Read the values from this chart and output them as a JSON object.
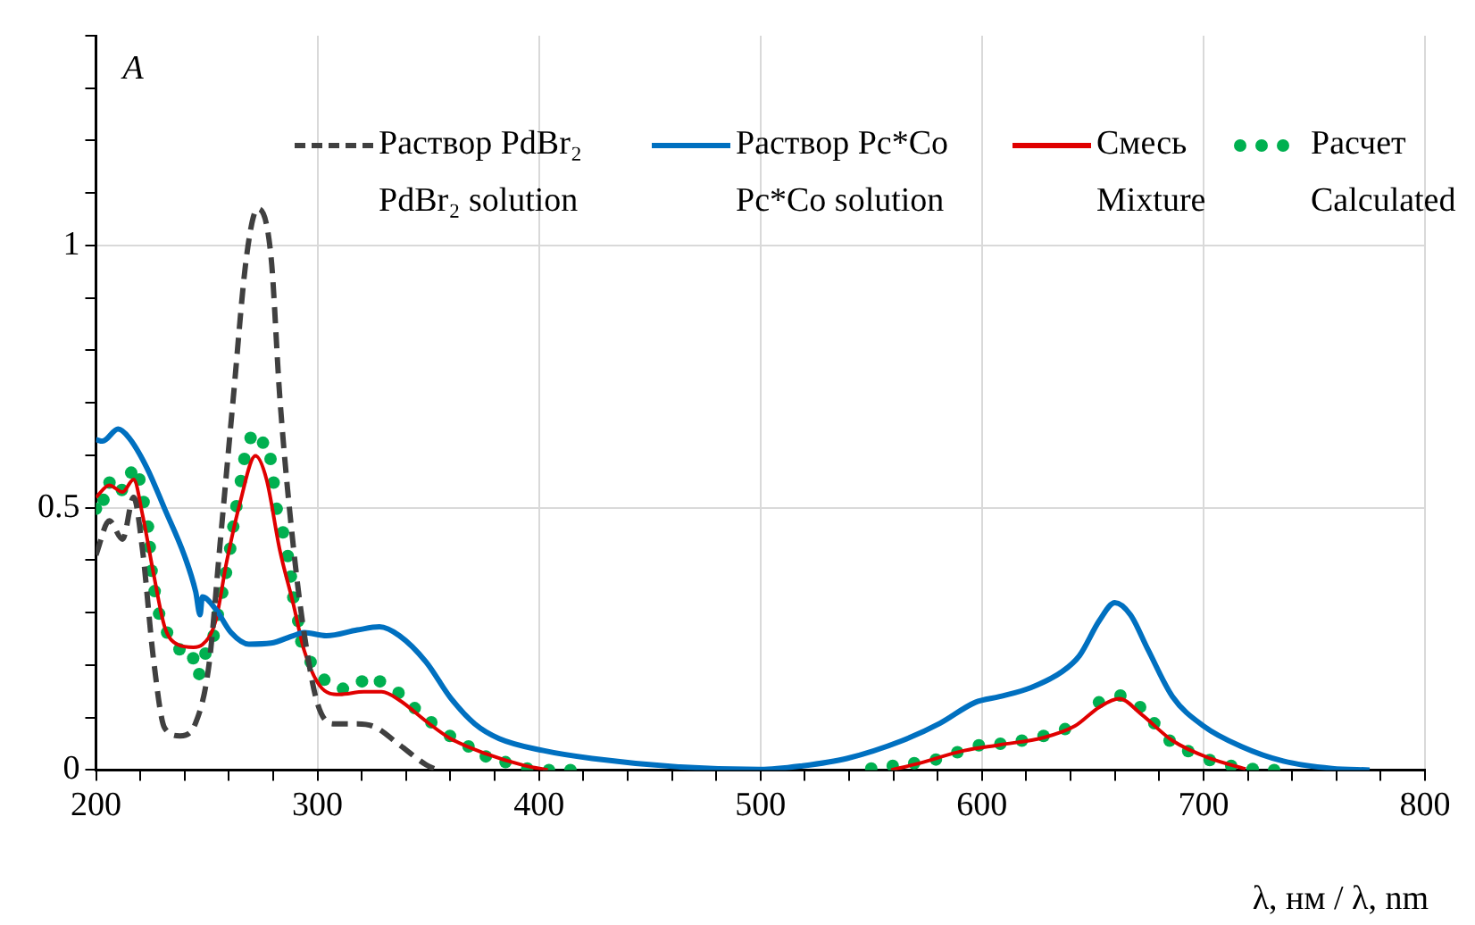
{
  "chart_data": {
    "type": "line",
    "ylabel": "A",
    "xlabel": "λ, нм / λ, nm",
    "xlim": [
      200,
      800
    ],
    "xticks": [
      200,
      {
        "value": 220,
        "label": null
      },
      {
        "value": 240,
        "label": null
      },
      {
        "value": 260,
        "label": null
      },
      {
        "value": 280,
        "label": null
      },
      300,
      {
        "value": 320,
        "label": null
      },
      {
        "value": 340,
        "label": null
      },
      {
        "value": 360,
        "label": null
      },
      {
        "value": 380,
        "label": null
      },
      400,
      {
        "value": 420,
        "label": null
      },
      {
        "value": 440,
        "label": null
      },
      {
        "value": 460,
        "label": null
      },
      {
        "value": 480,
        "label": null
      },
      500,
      {
        "value": 520,
        "label": null
      },
      {
        "value": 540,
        "label": null
      },
      {
        "value": 560,
        "label": null
      },
      {
        "value": 580,
        "label": null
      },
      600,
      {
        "value": 620,
        "label": null
      },
      {
        "value": 640,
        "label": null
      },
      {
        "value": 660,
        "label": null
      },
      {
        "value": 680,
        "label": null
      },
      700,
      {
        "value": 720,
        "label": null
      },
      {
        "value": 740,
        "label": null
      },
      {
        "value": 760,
        "label": null
      },
      {
        "value": 780,
        "label": null
      },
      800
    ],
    "ylim": [
      0,
      1.4
    ],
    "yticks": [
      0,
      {
        "value": 0.1,
        "label": null
      },
      {
        "value": 0.2,
        "label": null
      },
      {
        "value": 0.3,
        "label": null
      },
      {
        "value": 0.4,
        "label": null
      },
      0.5,
      {
        "value": 0.6,
        "label": null
      },
      {
        "value": 0.7,
        "label": null
      },
      {
        "value": 0.8,
        "label": null
      },
      {
        "value": 0.9,
        "label": null
      },
      1,
      {
        "value": 1.1,
        "label": null
      },
      {
        "value": 1.2,
        "label": null
      },
      {
        "value": 1.3,
        "label": null
      },
      {
        "value": 1.4,
        "label": null
      }
    ],
    "grid": true,
    "legend": "top",
    "annotations": [
      "PdBr₂ solution",
      "Pc*Co solution",
      "Mixture",
      "Calculated"
    ],
    "series": [
      {
        "name": "Раствор PdBr₂",
        "color": "#404040",
        "line_style": "dashed",
        "x": [
          200,
          206,
          212,
          217,
          221,
          226,
          231,
          238,
          245,
          251,
          256,
          262,
          268,
          273,
          279,
          283,
          289,
          294,
          300,
          307,
          318,
          326,
          337,
          349,
          354
        ],
        "values": [
          0.41,
          0.475,
          0.44,
          0.52,
          0.42,
          0.21,
          0.08,
          0.065,
          0.09,
          0.2,
          0.43,
          0.71,
          0.98,
          1.07,
          0.98,
          0.71,
          0.43,
          0.26,
          0.127,
          0.088,
          0.088,
          0.082,
          0.048,
          0.01,
          0
        ]
      },
      {
        "name": "Раствор Pc*Co",
        "color": "#0070c0",
        "line_style": "solid",
        "x": [
          200,
          203,
          210,
          215,
          223,
          231,
          240,
          245,
          247,
          248,
          254,
          261,
          269,
          279,
          289,
          294,
          304,
          318,
          328,
          337,
          349,
          360,
          371,
          382,
          402,
          424,
          463,
          500,
          519,
          539,
          564,
          581,
          597,
          608,
          622,
          636,
          644,
          653,
          660,
          667,
          675,
          686,
          700,
          717,
          736,
          758,
          775
        ],
        "values": [
          0.63,
          0.627,
          0.65,
          0.633,
          0.576,
          0.498,
          0.408,
          0.34,
          0.296,
          0.33,
          0.307,
          0.262,
          0.24,
          0.242,
          0.256,
          0.262,
          0.256,
          0.267,
          0.273,
          0.256,
          0.206,
          0.138,
          0.088,
          0.06,
          0.037,
          0.022,
          0.006,
          0.001,
          0.008,
          0.022,
          0.056,
          0.089,
          0.129,
          0.14,
          0.157,
          0.187,
          0.218,
          0.285,
          0.319,
          0.296,
          0.229,
          0.14,
          0.084,
          0.045,
          0.017,
          0.003,
          0
        ]
      },
      {
        "name": "Смесь",
        "color": "#e00000",
        "line_style": "solid",
        "x": [
          200,
          206,
          212,
          217,
          221,
          226,
          231,
          237,
          244,
          248,
          254,
          259,
          265,
          272,
          277,
          283,
          289,
          294,
          301,
          310,
          321,
          329,
          337,
          349,
          360,
          376,
          393,
          404,
          480,
          559,
          570,
          592,
          608,
          628,
          642,
          653,
          662,
          672,
          686,
          703,
          719
        ],
        "values": [
          0.52,
          0.543,
          0.53,
          0.554,
          0.487,
          0.374,
          0.273,
          0.239,
          0.234,
          0.239,
          0.284,
          0.397,
          0.509,
          0.599,
          0.554,
          0.419,
          0.318,
          0.228,
          0.161,
          0.144,
          0.149,
          0.149,
          0.133,
          0.093,
          0.06,
          0.031,
          0.009,
          0,
          null,
          0,
          0.011,
          0.037,
          0.048,
          0.062,
          0.084,
          0.12,
          0.136,
          0.106,
          0.056,
          0.022,
          0.002
        ]
      },
      {
        "name": "Расчет",
        "color": "#00b050",
        "type": "scatter",
        "marker": "circle",
        "x": [
          200,
          203.4,
          206.1,
          211.7,
          215.9,
          219.6,
          221.5,
          223.5,
          224.3,
          225.1,
          226.5,
          228.5,
          232.1,
          237.7,
          243.9,
          246.6,
          249.4,
          253.1,
          255,
          257,
          258.7,
          260.6,
          262,
          263.4,
          265.4,
          267,
          269.8,
          275.4,
          278.8,
          280.2,
          281.6,
          284.4,
          286.6,
          288,
          289.1,
          291.3,
          292.7,
          296.9,
          303.1,
          311.5,
          320.1,
          328.2,
          336.6,
          343.9,
          351.4,
          359.8,
          368.2,
          376,
          384.9,
          394.7,
          404.5,
          414.2,
          550,
          559.7,
          569.4,
          579.2,
          588.9,
          598.6,
          608.3,
          618,
          627.8,
          637.5,
          652.8,
          662.5,
          671.4,
          677.8,
          684.7,
          693.1,
          702.8,
          712.5,
          722.2,
          731.9
        ],
        "values": [
          0.498,
          0.515,
          0.548,
          0.534,
          0.567,
          0.554,
          0.511,
          0.464,
          0.425,
          0.38,
          0.341,
          0.298,
          0.262,
          0.23,
          0.213,
          0.183,
          0.222,
          0.256,
          0.296,
          0.338,
          0.376,
          0.422,
          0.464,
          0.503,
          0.551,
          0.593,
          0.633,
          0.624,
          0.593,
          0.548,
          0.498,
          0.453,
          0.408,
          0.369,
          0.329,
          0.284,
          0.245,
          0.206,
          0.172,
          0.155,
          0.169,
          0.169,
          0.147,
          0.118,
          0.091,
          0.065,
          0.045,
          0.026,
          0.015,
          0.003,
          0,
          0,
          0.003,
          0.008,
          0.013,
          0.02,
          0.034,
          0.047,
          0.05,
          0.056,
          0.065,
          0.078,
          0.129,
          0.142,
          0.12,
          0.089,
          0.056,
          0.036,
          0.019,
          0.008,
          0.002,
          0
        ]
      }
    ]
  }
}
